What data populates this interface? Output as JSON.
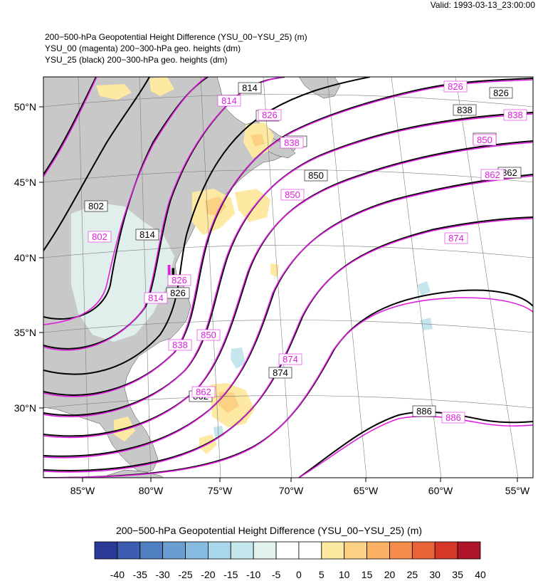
{
  "header": {
    "valid": "Valid: 1993-03-13_23:00:00",
    "title_lines": [
      "200−500-hPa Geopotential Height Difference (YSU_00−YSU_25)   (m)",
      "YSU_00 (magenta) 200−300-hPa geo. heights   (dm)",
      "YSU_25 (black) 200−300-hPa geo. heights   (dm)"
    ]
  },
  "map": {
    "projection": "lambert-conformal",
    "lon_labels": [
      "85°W",
      "80°W",
      "75°W",
      "70°W",
      "65°W",
      "60°W",
      "55°W"
    ],
    "lat_labels": [
      "50°N",
      "45°N",
      "40°N",
      "35°N",
      "30°N"
    ],
    "low_marker": "L",
    "colors": {
      "land": "#c8c8c8",
      "ocean": "#ffffff",
      "ysu00_contours": "#e020e0",
      "ysu25_contours": "#000000"
    },
    "contour_labels_black": [
      "814",
      "826",
      "838",
      "850",
      "862",
      "874",
      "886",
      "802",
      "814",
      "826",
      "838",
      "850",
      "862",
      "874",
      "886"
    ],
    "contour_labels_magenta": [
      "826",
      "838",
      "850",
      "862",
      "874",
      "886",
      "814",
      "802",
      "814",
      "826",
      "838",
      "850",
      "862",
      "874",
      "886"
    ]
  },
  "colorbar": {
    "title": "200−500-hPa Geopotential Height Difference (YSU_00−YSU_25)  (m)",
    "tick_labels": [
      "-40",
      "-35",
      "-30",
      "-25",
      "-20",
      "-15",
      "-10",
      "-5",
      "0",
      "5",
      "10",
      "15",
      "20",
      "25",
      "30",
      "35",
      "40"
    ],
    "colors": [
      "#2b3a96",
      "#3d5db0",
      "#4f7fc1",
      "#6a9ed0",
      "#87bce0",
      "#a9d6ea",
      "#c5e6ec",
      "#e2f2ef",
      "#ffffff",
      "#ffffff",
      "#fde9a2",
      "#fcd183",
      "#fab065",
      "#f58c4c",
      "#ea6238",
      "#d63728",
      "#b01429"
    ]
  }
}
